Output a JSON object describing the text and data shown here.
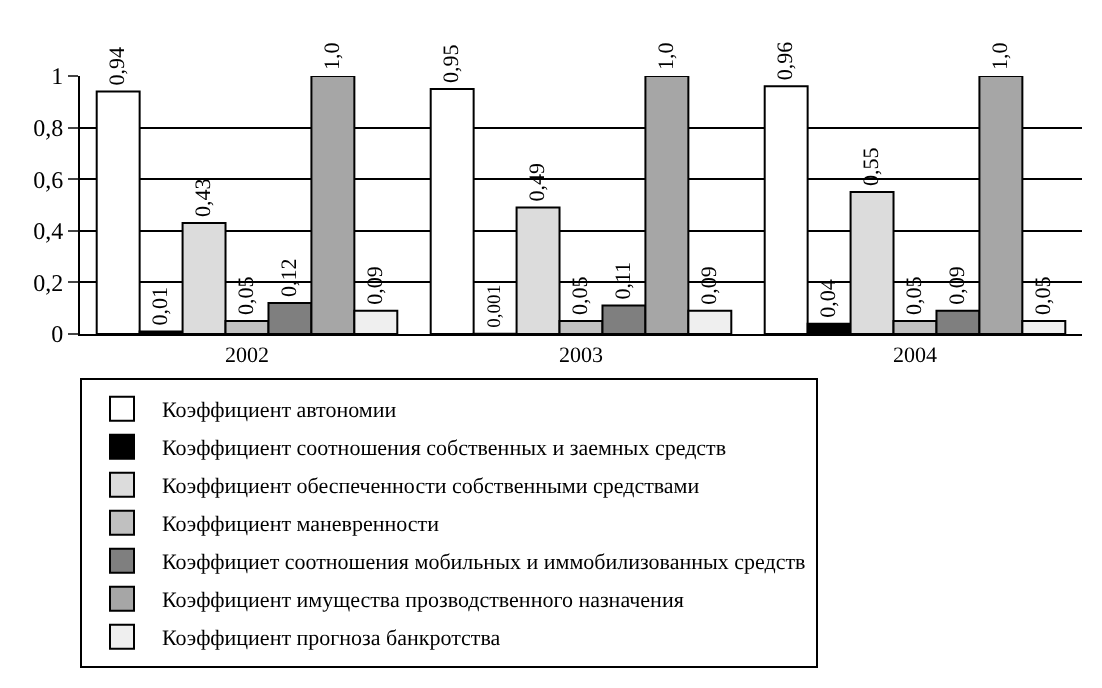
{
  "chart_data": {
    "type": "bar",
    "categories": [
      "2002",
      "2003",
      "2004"
    ],
    "series": [
      {
        "name": "Коэффициент автономии",
        "color": "#ffffff",
        "values": [
          0.94,
          0.95,
          0.96
        ],
        "value_labels": [
          "0,94",
          "0,95",
          "0,96"
        ]
      },
      {
        "name": "Коэффициент соотношения собственных и заемных средств",
        "color": "#000000",
        "values": [
          0.01,
          0.001,
          0.04
        ],
        "value_labels": [
          "0,01",
          "0,001",
          "0,04"
        ]
      },
      {
        "name": "Коэффициент обеспеченности собственными средствами",
        "color": "#dcdcdc",
        "values": [
          0.43,
          0.49,
          0.55
        ],
        "value_labels": [
          "0,43",
          "0,49",
          "0,55"
        ]
      },
      {
        "name": "Коэффициент маневренности",
        "color": "#c0c0c0",
        "values": [
          0.05,
          0.05,
          0.05
        ],
        "value_labels": [
          "0,05",
          "0,05",
          "0,05"
        ]
      },
      {
        "name": "Коэффициет соотношения мобильных и иммобилизованных средств",
        "color": "#7f7f7f",
        "values": [
          0.12,
          0.11,
          0.09
        ],
        "value_labels": [
          "0,12",
          "0,11",
          "0,09"
        ]
      },
      {
        "name": "Коэффициент имущества прозводственного назначения",
        "color": "#a6a6a6",
        "values": [
          1.0,
          1.0,
          1.0
        ],
        "value_labels": [
          "1,0",
          "1,0",
          "1,0"
        ]
      },
      {
        "name": "Коэффициент прогноза банкротства",
        "color": "#efefef",
        "values": [
          0.09,
          0.09,
          0.05
        ],
        "value_labels": [
          "0,09",
          "0,09",
          "0,05"
        ]
      }
    ],
    "ylim": [
      0,
      1
    ],
    "yticks": [
      0,
      {
        "value": 0.2,
        "label": "0,2"
      },
      {
        "value": 0.4,
        "label": "0,4"
      },
      {
        "value": 0.6,
        "label": "0,6"
      },
      {
        "value": 0.8,
        "label": "0,8"
      },
      1
    ],
    "grid": "y",
    "legend": "bottom"
  }
}
